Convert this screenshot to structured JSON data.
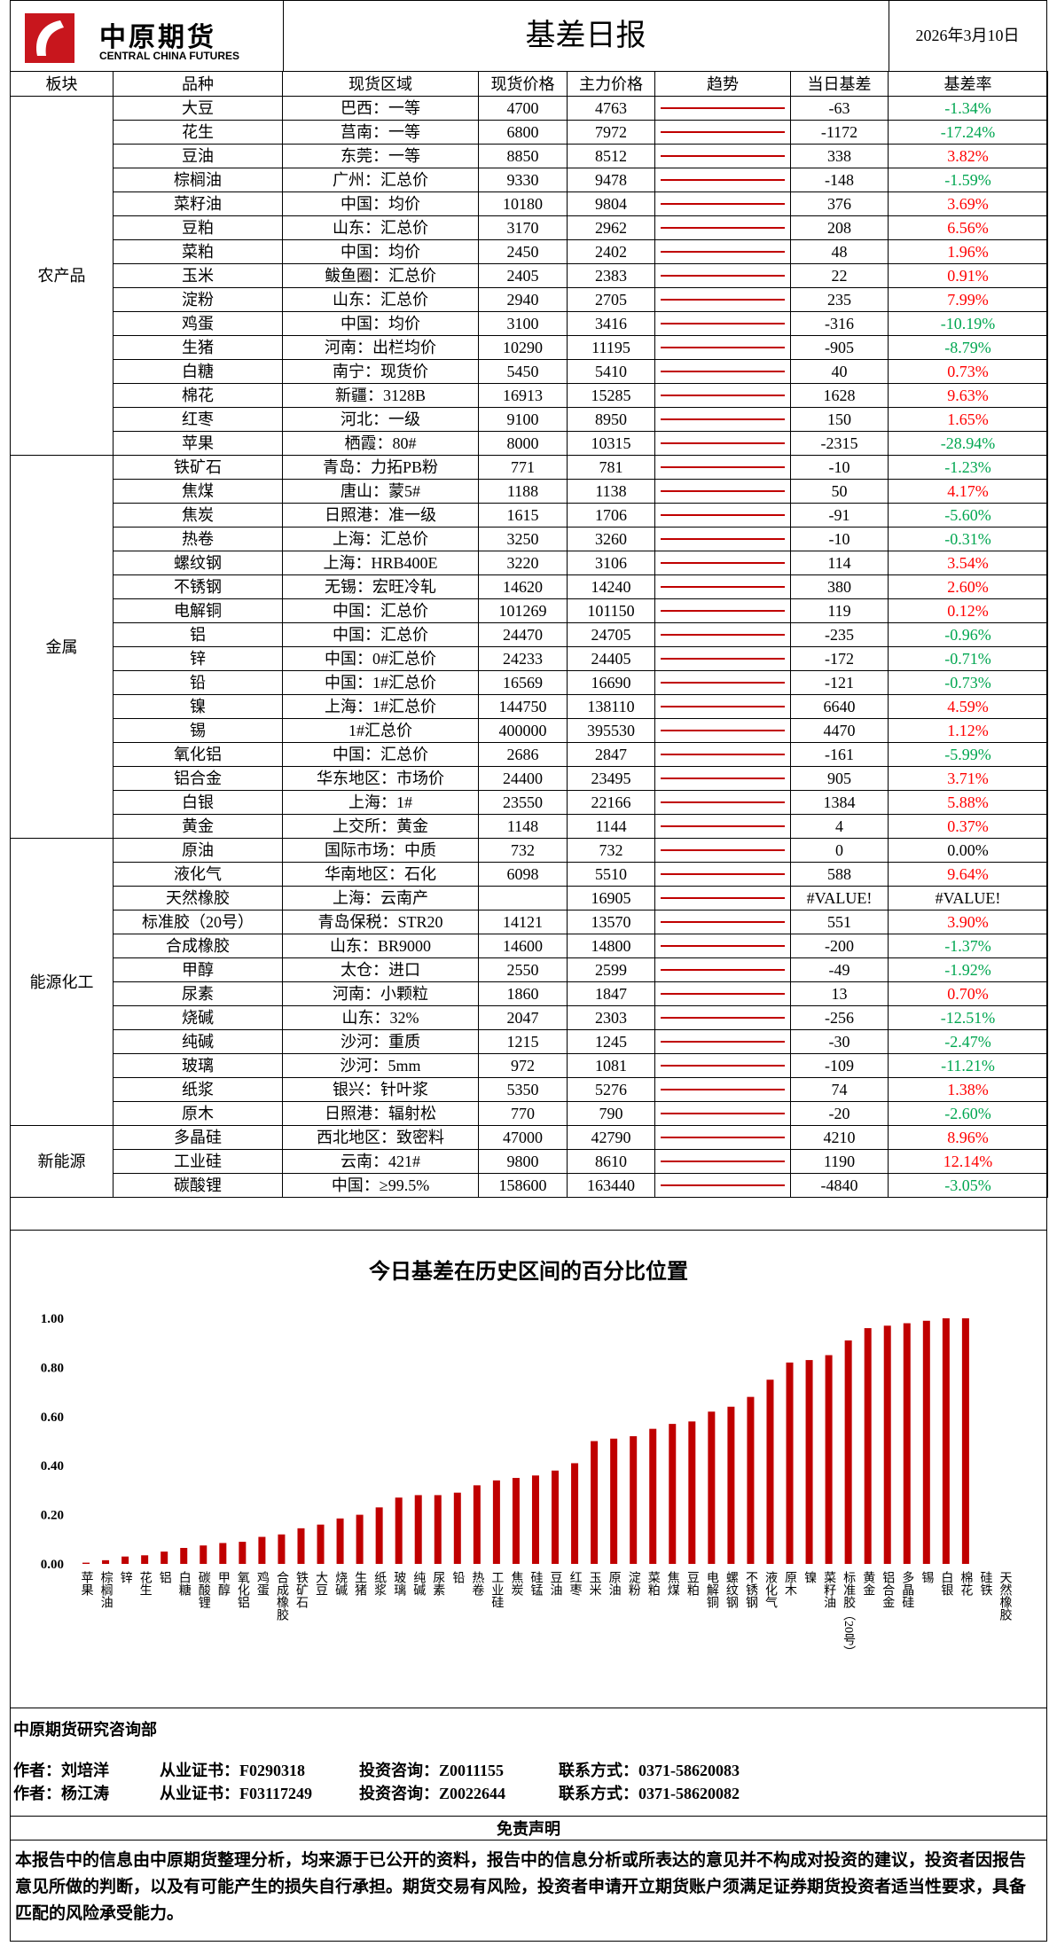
{
  "header": {
    "logo_cn": "中原期货",
    "logo_en": "CENTRAL CHINA FUTURES",
    "title": "基差日报",
    "date": "2026年3月10日"
  },
  "table": {
    "columns": [
      "板块",
      "品种",
      "现货区域",
      "现货价格",
      "主力价格",
      "趋势",
      "当日基差",
      "基差率"
    ],
    "sectors": [
      {
        "name": "农产品",
        "rows": [
          [
            "大豆",
            "巴西：一等",
            "4700",
            "4763",
            "-63",
            "-1.34%"
          ],
          [
            "花生",
            "莒南：一等",
            "6800",
            "7972",
            "-1172",
            "-17.24%"
          ],
          [
            "豆油",
            "东莞：一等",
            "8850",
            "8512",
            "338",
            "3.82%"
          ],
          [
            "棕榈油",
            "广州：汇总价",
            "9330",
            "9478",
            "-148",
            "-1.59%"
          ],
          [
            "菜籽油",
            "中国：均价",
            "10180",
            "9804",
            "376",
            "3.69%"
          ],
          [
            "豆粕",
            "山东：汇总价",
            "3170",
            "2962",
            "208",
            "6.56%"
          ],
          [
            "菜粕",
            "中国：均价",
            "2450",
            "2402",
            "48",
            "1.96%"
          ],
          [
            "玉米",
            "鲅鱼圈：汇总价",
            "2405",
            "2383",
            "22",
            "0.91%"
          ],
          [
            "淀粉",
            "山东：汇总价",
            "2940",
            "2705",
            "235",
            "7.99%"
          ],
          [
            "鸡蛋",
            "中国：均价",
            "3100",
            "3416",
            "-316",
            "-10.19%"
          ],
          [
            "生猪",
            "河南：出栏均价",
            "10290",
            "11195",
            "-905",
            "-8.79%"
          ],
          [
            "白糖",
            "南宁：现货价",
            "5450",
            "5410",
            "40",
            "0.73%"
          ],
          [
            "棉花",
            "新疆：3128B",
            "16913",
            "15285",
            "1628",
            "9.63%"
          ],
          [
            "红枣",
            "河北：一级",
            "9100",
            "8950",
            "150",
            "1.65%"
          ],
          [
            "苹果",
            "栖霞：80#",
            "8000",
            "10315",
            "-2315",
            "-28.94%"
          ]
        ]
      },
      {
        "name": "金属",
        "rows": [
          [
            "铁矿石",
            "青岛：力拓PB粉",
            "771",
            "781",
            "-10",
            "-1.23%"
          ],
          [
            "焦煤",
            "唐山：蒙5#",
            "1188",
            "1138",
            "50",
            "4.17%"
          ],
          [
            "焦炭",
            "日照港：准一级",
            "1615",
            "1706",
            "-91",
            "-5.60%"
          ],
          [
            "热卷",
            "上海：汇总价",
            "3250",
            "3260",
            "-10",
            "-0.31%"
          ],
          [
            "螺纹钢",
            "上海：HRB400E",
            "3220",
            "3106",
            "114",
            "3.54%"
          ],
          [
            "不锈钢",
            "无锡：宏旺冷轧",
            "14620",
            "14240",
            "380",
            "2.60%"
          ],
          [
            "电解铜",
            "中国：汇总价",
            "101269",
            "101150",
            "119",
            "0.12%"
          ],
          [
            "铝",
            "中国：汇总价",
            "24470",
            "24705",
            "-235",
            "-0.96%"
          ],
          [
            "锌",
            "中国：0#汇总价",
            "24233",
            "24405",
            "-172",
            "-0.71%"
          ],
          [
            "铅",
            "中国：1#汇总价",
            "16569",
            "16690",
            "-121",
            "-0.73%"
          ],
          [
            "镍",
            "上海：1#汇总价",
            "144750",
            "138110",
            "6640",
            "4.59%"
          ],
          [
            "锡",
            "1#汇总价",
            "400000",
            "395530",
            "4470",
            "1.12%"
          ],
          [
            "氧化铝",
            "中国：汇总价",
            "2686",
            "2847",
            "-161",
            "-5.99%"
          ],
          [
            "铝合金",
            "华东地区：市场价",
            "24400",
            "23495",
            "905",
            "3.71%"
          ],
          [
            "白银",
            "上海：1#",
            "23550",
            "22166",
            "1384",
            "5.88%"
          ],
          [
            "黄金",
            "上交所：黄金",
            "1148",
            "1144",
            "4",
            "0.37%"
          ]
        ]
      },
      {
        "name": "能源化工",
        "rows": [
          [
            "原油",
            "国际市场：中质",
            "732",
            "732",
            "0",
            "0.00%"
          ],
          [
            "液化气",
            "华南地区：石化",
            "6098",
            "5510",
            "588",
            "9.64%"
          ],
          [
            "天然橡胶",
            "上海：云南产",
            null,
            "16905",
            "#VALUE!",
            "#VALUE!"
          ],
          [
            "标准胶（20号）",
            "青岛保税：STR20",
            "14121",
            "13570",
            "551",
            "3.90%"
          ],
          [
            "合成橡胶",
            "山东：BR9000",
            "14600",
            "14800",
            "-200",
            "-1.37%"
          ],
          [
            "甲醇",
            "太仓：进口",
            "2550",
            "2599",
            "-49",
            "-1.92%"
          ],
          [
            "尿素",
            "河南：小颗粒",
            "1860",
            "1847",
            "13",
            "0.70%"
          ],
          [
            "烧碱",
            "山东：32%",
            "2047",
            "2303",
            "-256",
            "-12.51%"
          ],
          [
            "纯碱",
            "沙河：重质",
            "1215",
            "1245",
            "-30",
            "-2.47%"
          ],
          [
            "玻璃",
            "沙河：5mm",
            "972",
            "1081",
            "-109",
            "-11.21%"
          ],
          [
            "纸浆",
            "银兴：针叶浆",
            "5350",
            "5276",
            "74",
            "1.38%"
          ],
          [
            "原木",
            "日照港：辐射松",
            "770",
            "790",
            "-20",
            "-2.60%"
          ]
        ]
      },
      {
        "name": "新能源",
        "rows": [
          [
            "多晶硅",
            "西北地区：致密料",
            "47000",
            "42790",
            "4210",
            "8.96%"
          ],
          [
            "工业硅",
            "云南：421#",
            "9800",
            "8610",
            "1190",
            "12.14%"
          ],
          [
            "碳酸锂",
            "中国：≥99.5%",
            "158600",
            "163440",
            "-4840",
            "-3.05%"
          ]
        ]
      }
    ]
  },
  "chart_data": {
    "type": "bar",
    "title": "今日基差在历史区间的百分比位置",
    "categories": [
      "苹果",
      "棕榈油",
      "锌",
      "花生",
      "铝",
      "白糖",
      "碳酸锂",
      "甲醇",
      "氧化铝",
      "鸡蛋",
      "合成橡胶",
      "铁矿石",
      "大豆",
      "烧碱",
      "生猪",
      "纸浆",
      "玻璃",
      "纯碱",
      "尿素",
      "铅",
      "热卷",
      "工业硅",
      "焦炭",
      "硅锰",
      "豆油",
      "红枣",
      "玉米",
      "原油",
      "淀粉",
      "菜粕",
      "焦煤",
      "豆粕",
      "电解铜",
      "螺纹钢",
      "不锈钢",
      "液化气",
      "原木",
      "镍",
      "菜籽油",
      "标准胶（20号）",
      "黄金",
      "铝合金",
      "多晶硅",
      "锡",
      "白银",
      "棉花",
      "硅铁",
      "天然橡胶"
    ],
    "values": [
      0.005,
      0.015,
      0.03,
      0.035,
      0.05,
      0.065,
      0.075,
      0.085,
      0.09,
      0.11,
      0.12,
      0.145,
      0.16,
      0.185,
      0.2,
      0.23,
      0.27,
      0.28,
      0.28,
      0.29,
      0.32,
      0.34,
      0.35,
      0.36,
      0.38,
      0.41,
      0.5,
      0.51,
      0.52,
      0.55,
      0.57,
      0.58,
      0.62,
      0.64,
      0.68,
      0.75,
      0.82,
      0.83,
      0.85,
      0.91,
      0.96,
      0.97,
      0.98,
      0.99,
      1.0,
      1.0,
      null,
      null
    ],
    "color": "#c00000",
    "ylim": [
      0,
      1
    ],
    "yticks": [
      {
        "value": 0,
        "label": "0.00"
      },
      {
        "value": 0.2,
        "label": "0.20"
      },
      {
        "value": 0.4,
        "label": "0.40"
      },
      {
        "value": 0.6,
        "label": "0.60"
      },
      {
        "value": 0.8,
        "label": "0.80"
      },
      {
        "value": 1,
        "label": "1.00"
      }
    ],
    "grid": false
  },
  "footer": {
    "department": "中原期货研究咨询部",
    "authors": [
      [
        "作者：刘培洋",
        "从业证书：F0290318",
        "投资咨询：Z0011155",
        "联系方式：0371-58620083"
      ],
      [
        "作者：杨江涛",
        "从业证书：F03117249",
        "投资咨询：Z0022644",
        "联系方式：0371-58620082"
      ]
    ],
    "disclaimer_title": "免责声明",
    "disclaimer": "本报告中的信息由中原期货整理分析，均来源于已公开的资料，报告中的信息分析或所表达的意见并不构成对投资的建议，投资者因报告意见所做的判断，以及有可能产生的损失自行承担。期货交易有风险，投资者申请开立期货账户须满足证券期货投资者适当性要求，具备匹配的风险承受能力。"
  }
}
